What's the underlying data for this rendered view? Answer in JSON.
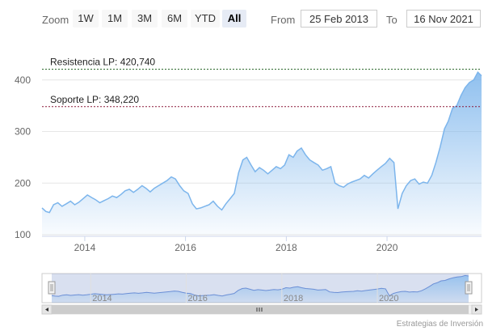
{
  "toolbar": {
    "zoom_label": "Zoom",
    "buttons": [
      "1W",
      "1M",
      "3M",
      "6M",
      "YTD",
      "All"
    ],
    "active_button": "All",
    "from_label": "From",
    "from_value": "25 Feb 2013",
    "to_label": "To",
    "to_value": "16 Nov 2021"
  },
  "credit": "Estrategias de Inversión",
  "colors": {
    "line": "#7cb5ec",
    "area_top": "#7cb5ec",
    "resistance": "#2d6a2d",
    "support": "#8b1a3a"
  },
  "chart_data": {
    "type": "area",
    "title": "",
    "xlabel": "",
    "ylabel": "",
    "x_range": [
      "2013-02-25",
      "2021-11-16"
    ],
    "ylim": [
      100,
      420
    ],
    "y_ticks": [
      100,
      200,
      300,
      400
    ],
    "x_ticks": [
      "2014",
      "2016",
      "2018",
      "2020"
    ],
    "navigator_ticks": [
      "2014",
      "2016",
      "2018",
      "2020"
    ],
    "grid": true,
    "annotations": [
      {
        "label": "Resistencia LP: 420,740",
        "value": 420.74
      },
      {
        "label": "Soporte LP: 348,220",
        "value": 348.22
      }
    ],
    "series": [
      {
        "points": [
          [
            "2013-02-25",
            152
          ],
          [
            "2013-03-25",
            145
          ],
          [
            "2013-04-20",
            143
          ],
          [
            "2013-05-20",
            158
          ],
          [
            "2013-06-20",
            162
          ],
          [
            "2013-07-20",
            155
          ],
          [
            "2013-08-20",
            160
          ],
          [
            "2013-09-20",
            165
          ],
          [
            "2013-10-20",
            158
          ],
          [
            "2013-11-20",
            163
          ],
          [
            "2013-12-20",
            170
          ],
          [
            "2014-01-20",
            177
          ],
          [
            "2014-02-20",
            172
          ],
          [
            "2014-03-20",
            168
          ],
          [
            "2014-04-20",
            162
          ],
          [
            "2014-05-20",
            166
          ],
          [
            "2014-06-20",
            170
          ],
          [
            "2014-07-20",
            175
          ],
          [
            "2014-08-20",
            172
          ],
          [
            "2014-09-20",
            178
          ],
          [
            "2014-10-20",
            185
          ],
          [
            "2014-11-20",
            188
          ],
          [
            "2014-12-20",
            182
          ],
          [
            "2015-01-20",
            188
          ],
          [
            "2015-02-20",
            195
          ],
          [
            "2015-03-20",
            190
          ],
          [
            "2015-04-20",
            183
          ],
          [
            "2015-05-20",
            190
          ],
          [
            "2015-06-20",
            195
          ],
          [
            "2015-07-20",
            200
          ],
          [
            "2015-08-20",
            205
          ],
          [
            "2015-09-20",
            212
          ],
          [
            "2015-10-20",
            208
          ],
          [
            "2015-11-20",
            195
          ],
          [
            "2015-12-20",
            185
          ],
          [
            "2016-01-20",
            180
          ],
          [
            "2016-02-20",
            160
          ],
          [
            "2016-03-20",
            150
          ],
          [
            "2016-04-20",
            152
          ],
          [
            "2016-05-20",
            155
          ],
          [
            "2016-06-20",
            158
          ],
          [
            "2016-07-20",
            165
          ],
          [
            "2016-08-20",
            155
          ],
          [
            "2016-09-20",
            148
          ],
          [
            "2016-10-20",
            160
          ],
          [
            "2016-11-20",
            170
          ],
          [
            "2016-12-20",
            180
          ],
          [
            "2017-01-20",
            220
          ],
          [
            "2017-02-20",
            245
          ],
          [
            "2017-03-20",
            250
          ],
          [
            "2017-04-20",
            235
          ],
          [
            "2017-05-20",
            222
          ],
          [
            "2017-06-20",
            230
          ],
          [
            "2017-07-20",
            225
          ],
          [
            "2017-08-20",
            218
          ],
          [
            "2017-09-20",
            225
          ],
          [
            "2017-10-20",
            232
          ],
          [
            "2017-11-20",
            228
          ],
          [
            "2017-12-20",
            235
          ],
          [
            "2018-01-20",
            255
          ],
          [
            "2018-02-20",
            250
          ],
          [
            "2018-03-20",
            262
          ],
          [
            "2018-04-20",
            268
          ],
          [
            "2018-05-20",
            255
          ],
          [
            "2018-06-20",
            245
          ],
          [
            "2018-07-20",
            240
          ],
          [
            "2018-08-20",
            235
          ],
          [
            "2018-09-20",
            225
          ],
          [
            "2018-10-20",
            228
          ],
          [
            "2018-11-20",
            232
          ],
          [
            "2018-12-20",
            200
          ],
          [
            "2019-01-20",
            195
          ],
          [
            "2019-02-20",
            192
          ],
          [
            "2019-03-20",
            198
          ],
          [
            "2019-04-20",
            202
          ],
          [
            "2019-05-20",
            205
          ],
          [
            "2019-06-20",
            208
          ],
          [
            "2019-07-20",
            215
          ],
          [
            "2019-08-20",
            210
          ],
          [
            "2019-09-20",
            218
          ],
          [
            "2019-10-20",
            225
          ],
          [
            "2019-11-20",
            232
          ],
          [
            "2019-12-20",
            238
          ],
          [
            "2020-01-20",
            248
          ],
          [
            "2020-02-20",
            240
          ],
          [
            "2020-03-20",
            150
          ],
          [
            "2020-04-20",
            180
          ],
          [
            "2020-05-20",
            195
          ],
          [
            "2020-06-20",
            205
          ],
          [
            "2020-07-20",
            208
          ],
          [
            "2020-08-20",
            198
          ],
          [
            "2020-09-20",
            202
          ],
          [
            "2020-10-20",
            200
          ],
          [
            "2020-11-20",
            215
          ],
          [
            "2020-12-20",
            240
          ],
          [
            "2021-01-20",
            270
          ],
          [
            "2021-02-20",
            305
          ],
          [
            "2021-03-20",
            320
          ],
          [
            "2021-04-20",
            345
          ],
          [
            "2021-05-20",
            350
          ],
          [
            "2021-06-20",
            370
          ],
          [
            "2021-07-20",
            385
          ],
          [
            "2021-08-20",
            395
          ],
          [
            "2021-09-20",
            400
          ],
          [
            "2021-10-20",
            415
          ],
          [
            "2021-11-16",
            408
          ]
        ]
      }
    ]
  }
}
